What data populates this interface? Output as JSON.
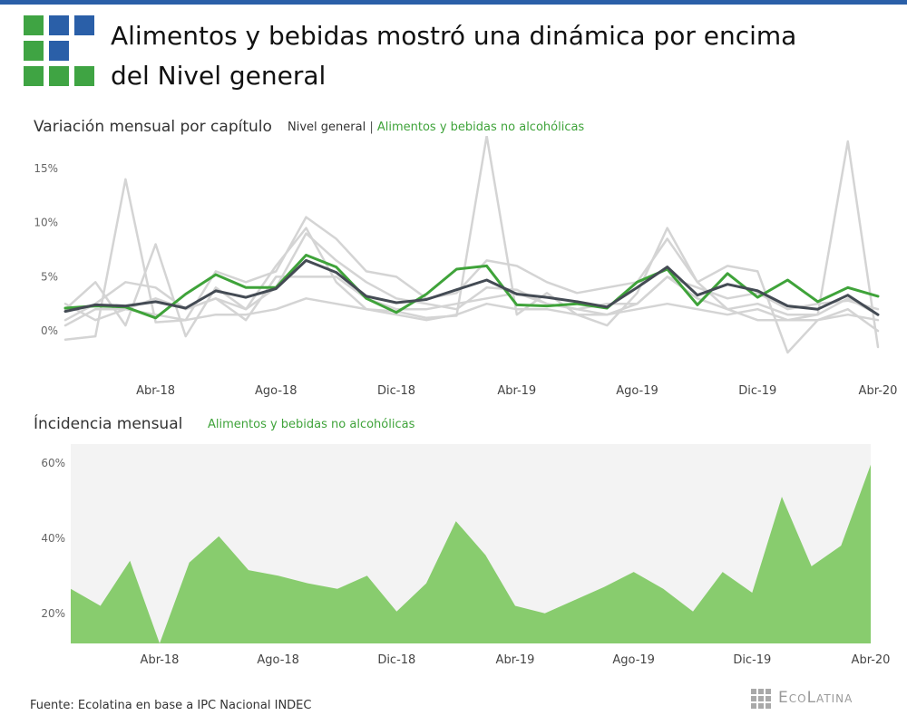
{
  "header": {
    "title_line1": "Alimentos y bebidas mostró una dinámica por encima",
    "title_line2": "del Nivel general"
  },
  "colors": {
    "accent_blue": "#2a5fa8",
    "logo_green": "#3fa443",
    "nivel_general": "#444b54",
    "alimentos": "#3fa33a",
    "other_series": "#d4d4d4",
    "area_fill": "#88cc6e",
    "plot_bg": "#f3f3f3"
  },
  "legend": {
    "nivel_general": "Nivel general",
    "separator": "|",
    "alimentos": "Alimentos y bebidas no alcohólicas"
  },
  "footer": {
    "source": "Fuente: Ecolatina en base a IPC Nacional INDEC",
    "brand": "EcoLatina"
  },
  "chart_data": [
    {
      "type": "line",
      "title": "Variación mensual por capítulo",
      "x": [
        "Ene-18",
        "Feb-18",
        "Mar-18",
        "Abr-18",
        "May-18",
        "Jun-18",
        "Jul-18",
        "Ago-18",
        "Sep-18",
        "Oct-18",
        "Nov-18",
        "Dic-18",
        "Ene-19",
        "Feb-19",
        "Mar-19",
        "Abr-19",
        "May-19",
        "Jun-19",
        "Jul-19",
        "Ago-19",
        "Sep-19",
        "Oct-19",
        "Nov-19",
        "Dic-19",
        "Ene-20",
        "Feb-20",
        "Mar-20",
        "Abr-20"
      ],
      "x_tick_labels": [
        "Abr-18",
        "Ago-18",
        "Dic-18",
        "Abr-19",
        "Ago-19",
        "Dic-19",
        "Abr-20"
      ],
      "y_ticks": [
        "0%",
        "5%",
        "10%",
        "15%"
      ],
      "ylim": [
        -2.5,
        18
      ],
      "series": [
        {
          "name": "Nivel general",
          "highlight": "nivel_general",
          "values": [
            1.8,
            2.4,
            2.3,
            2.7,
            2.1,
            3.7,
            3.1,
            3.9,
            6.5,
            5.4,
            3.2,
            2.6,
            2.9,
            3.8,
            4.7,
            3.4,
            3.1,
            2.7,
            2.2,
            4.0,
            5.9,
            3.3,
            4.3,
            3.7,
            2.3,
            2.0,
            3.3,
            1.5
          ]
        },
        {
          "name": "Alimentos y bebidas no alcohólicas",
          "highlight": "alimentos",
          "values": [
            2.1,
            2.3,
            2.2,
            1.2,
            3.4,
            5.2,
            4.0,
            4.0,
            7.0,
            5.9,
            3.0,
            1.7,
            3.4,
            5.7,
            6.0,
            2.4,
            2.3,
            2.5,
            2.1,
            4.5,
            5.7,
            2.4,
            5.3,
            3.1,
            4.7,
            2.7,
            4.0,
            3.2
          ]
        },
        {
          "values": [
            2.0,
            4.5,
            0.5,
            8.0,
            -0.5,
            4.0,
            2.0,
            6.0,
            9.5,
            4.5,
            2.0,
            1.8,
            1.2,
            1.4,
            18.0,
            1.5,
            3.5,
            1.5,
            0.5,
            3.5,
            9.5,
            4.5,
            2.0,
            1.0,
            1.0,
            1.5,
            17.5,
            -1.5
          ]
        },
        {
          "values": [
            -0.8,
            -0.5,
            14.0,
            0.8,
            1.0,
            5.5,
            4.5,
            5.5,
            10.5,
            8.5,
            5.5,
            5.0,
            3.0,
            3.5,
            6.5,
            6.0,
            4.5,
            3.5,
            4.0,
            4.5,
            8.5,
            4.5,
            6.0,
            5.5,
            -2.0,
            1.0,
            2.0,
            0.0
          ]
        },
        {
          "values": [
            1.0,
            2.5,
            4.5,
            4.0,
            2.0,
            3.0,
            2.0,
            4.0,
            9.0,
            6.5,
            4.5,
            3.0,
            2.5,
            2.0,
            4.0,
            3.8,
            2.5,
            2.0,
            1.5,
            2.5,
            5.0,
            4.0,
            3.0,
            3.5,
            2.0,
            2.5,
            2.8,
            2.0
          ]
        },
        {
          "values": [
            2.5,
            1.0,
            2.0,
            3.0,
            2.0,
            3.0,
            1.0,
            5.0,
            5.0,
            5.0,
            3.0,
            2.0,
            2.0,
            2.5,
            3.0,
            3.5,
            2.5,
            2.0,
            2.5,
            2.5,
            5.0,
            3.0,
            2.0,
            2.5,
            1.5,
            1.5,
            3.0,
            1.5
          ]
        },
        {
          "values": [
            0.5,
            2.0,
            2.0,
            1.5,
            1.0,
            1.5,
            1.5,
            2.0,
            3.0,
            2.5,
            2.0,
            1.5,
            1.0,
            1.5,
            2.5,
            2.0,
            2.0,
            1.5,
            1.5,
            2.0,
            2.5,
            2.0,
            1.5,
            2.0,
            1.0,
            1.0,
            1.5,
            1.0
          ]
        }
      ]
    },
    {
      "type": "area",
      "title": "Íncidencia mensual",
      "legend": "Alimentos y bebidas no alcohólicas",
      "x": [
        "Ene-18",
        "Feb-18",
        "Mar-18",
        "Abr-18",
        "May-18",
        "Jun-18",
        "Jul-18",
        "Ago-18",
        "Sep-18",
        "Oct-18",
        "Nov-18",
        "Dic-18",
        "Ene-19",
        "Feb-19",
        "Mar-19",
        "Abr-19",
        "May-19",
        "Jun-19",
        "Jul-19",
        "Ago-19",
        "Sep-19",
        "Oct-19",
        "Nov-19",
        "Dic-19",
        "Ene-20",
        "Feb-20",
        "Mar-20",
        "Abr-20"
      ],
      "x_tick_labels": [
        "Abr-18",
        "Ago-18",
        "Dic-18",
        "Abr-19",
        "Ago-19",
        "Dic-19",
        "Abr-20"
      ],
      "y_ticks": [
        "20%",
        "40%",
        "60%"
      ],
      "ylim": [
        12,
        65
      ],
      "values": [
        26.5,
        22.0,
        34.0,
        12.0,
        33.5,
        40.5,
        31.5,
        30.0,
        28.0,
        26.5,
        30.0,
        20.5,
        28.0,
        44.5,
        35.5,
        22.0,
        20.0,
        23.5,
        27.0,
        31.0,
        26.5,
        20.5,
        31.0,
        25.5,
        51.0,
        32.5,
        38.0,
        59.5
      ]
    }
  ]
}
